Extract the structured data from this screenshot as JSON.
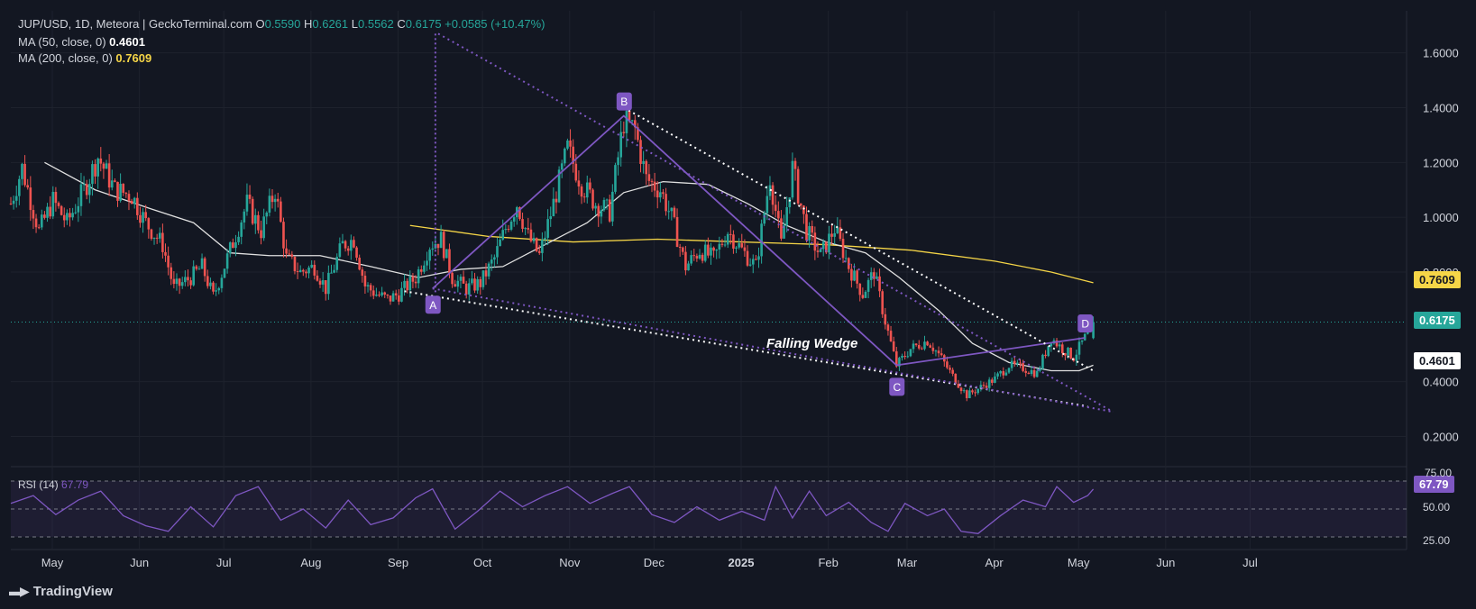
{
  "header": {
    "title": "JUP/USD, 1D, Meteora | GeckoTerminal.com",
    "open_label": "O",
    "open": "0.5590",
    "high_label": "H",
    "high": "0.6261",
    "low_label": "L",
    "low": "0.5562",
    "close_label": "C",
    "close": "0.6175",
    "change": "+0.0585 (+10.47%)",
    "ma50_label": "MA (50, close, 0)",
    "ma50_value": "0.4601",
    "ma200_label": "MA (200, close, 0)",
    "ma200_value": "0.7609"
  },
  "colors": {
    "background": "#131722",
    "bull": "#26a69a",
    "bear": "#ef5350",
    "ma50": "#e0e0e0",
    "ma200": "#f5d547",
    "pattern": "#7e57c2",
    "rsi": "#7e57c2"
  },
  "price_tags": {
    "ma200": "0.7609",
    "last": "0.6175",
    "ma50": "0.4601"
  },
  "rsi": {
    "label": "RSI (14)",
    "value": "67.79",
    "levels": [
      "75.00",
      "50.00",
      "25.00"
    ]
  },
  "annotations": {
    "pattern_name": "Falling Wedge",
    "points": [
      "A",
      "B",
      "C",
      "D"
    ]
  },
  "footer": {
    "brand": "TradingView"
  },
  "chart_data": {
    "type": "candlestick",
    "symbol": "JUP/USD",
    "interval": "1D",
    "y_ticks": [
      "1.6000",
      "1.4000",
      "1.2000",
      "1.0000",
      "0.8000",
      "0.4000",
      "0.2000"
    ],
    "ylim": [
      0.14,
      1.7
    ],
    "x_ticks": [
      "May",
      "Jun",
      "Jul",
      "Aug",
      "Sep",
      "Oct",
      "Nov",
      "Dec",
      "2025",
      "Feb",
      "Mar",
      "Apr",
      "May",
      "Jun",
      "Jul"
    ],
    "close_path": [
      {
        "day": 0,
        "close": 1.05
      },
      {
        "day": 4,
        "close": 1.18
      },
      {
        "day": 10,
        "close": 0.95
      },
      {
        "day": 15,
        "close": 1.06
      },
      {
        "day": 20,
        "close": 0.98
      },
      {
        "day": 26,
        "close": 1.1
      },
      {
        "day": 31,
        "close": 1.22
      },
      {
        "day": 37,
        "close": 1.1
      },
      {
        "day": 43,
        "close": 1.08
      },
      {
        "day": 48,
        "close": 0.98
      },
      {
        "day": 54,
        "close": 0.9
      },
      {
        "day": 58,
        "close": 0.74
      },
      {
        "day": 64,
        "close": 0.78
      },
      {
        "day": 68,
        "close": 0.82
      },
      {
        "day": 72,
        "close": 0.71
      },
      {
        "day": 78,
        "close": 0.88
      },
      {
        "day": 84,
        "close": 1.05
      },
      {
        "day": 89,
        "close": 0.95
      },
      {
        "day": 94,
        "close": 1.1
      },
      {
        "day": 98,
        "close": 0.85
      },
      {
        "day": 103,
        "close": 0.8
      },
      {
        "day": 108,
        "close": 0.82
      },
      {
        "day": 112,
        "close": 0.74
      },
      {
        "day": 118,
        "close": 0.9
      },
      {
        "day": 122,
        "close": 0.92
      },
      {
        "day": 126,
        "close": 0.75
      },
      {
        "day": 130,
        "close": 0.72
      },
      {
        "day": 134,
        "close": 0.7
      },
      {
        "day": 138,
        "close": 0.72
      },
      {
        "day": 144,
        "close": 0.78
      },
      {
        "day": 149,
        "close": 0.9
      },
      {
        "day": 153,
        "close": 0.92
      },
      {
        "day": 157,
        "close": 0.78
      },
      {
        "day": 162,
        "close": 0.74
      },
      {
        "day": 167,
        "close": 0.76
      },
      {
        "day": 172,
        "close": 0.85
      },
      {
        "day": 176,
        "close": 0.96
      },
      {
        "day": 180,
        "close": 1.05
      },
      {
        "day": 184,
        "close": 0.93
      },
      {
        "day": 188,
        "close": 0.86
      },
      {
        "day": 193,
        "close": 1.05
      },
      {
        "day": 198,
        "close": 1.25
      },
      {
        "day": 203,
        "close": 1.12
      },
      {
        "day": 208,
        "close": 1.05
      },
      {
        "day": 213,
        "close": 1.02
      },
      {
        "day": 218,
        "close": 1.35
      },
      {
        "day": 222,
        "close": 1.32
      },
      {
        "day": 226,
        "close": 1.14
      },
      {
        "day": 231,
        "close": 1.1
      },
      {
        "day": 235,
        "close": 1.0
      },
      {
        "day": 240,
        "close": 0.82
      },
      {
        "day": 245,
        "close": 0.88
      },
      {
        "day": 250,
        "close": 0.85
      },
      {
        "day": 255,
        "close": 0.95
      },
      {
        "day": 260,
        "close": 0.88
      },
      {
        "day": 265,
        "close": 0.82
      },
      {
        "day": 270,
        "close": 1.15
      },
      {
        "day": 274,
        "close": 0.9
      },
      {
        "day": 278,
        "close": 1.18
      },
      {
        "day": 283,
        "close": 0.95
      },
      {
        "day": 288,
        "close": 0.86
      },
      {
        "day": 293,
        "close": 0.96
      },
      {
        "day": 298,
        "close": 0.82
      },
      {
        "day": 303,
        "close": 0.72
      },
      {
        "day": 307,
        "close": 0.8
      },
      {
        "day": 311,
        "close": 0.62
      },
      {
        "day": 315,
        "close": 0.46
      },
      {
        "day": 320,
        "close": 0.52
      },
      {
        "day": 326,
        "close": 0.55
      },
      {
        "day": 330,
        "close": 0.5
      },
      {
        "day": 335,
        "close": 0.42
      },
      {
        "day": 340,
        "close": 0.35
      },
      {
        "day": 345,
        "close": 0.38
      },
      {
        "day": 350,
        "close": 0.41
      },
      {
        "day": 355,
        "close": 0.46
      },
      {
        "day": 360,
        "close": 0.45
      },
      {
        "day": 365,
        "close": 0.43
      },
      {
        "day": 370,
        "close": 0.56
      },
      {
        "day": 374,
        "close": 0.52
      },
      {
        "day": 378,
        "close": 0.49
      },
      {
        "day": 382,
        "close": 0.56
      },
      {
        "day": 385,
        "close": 0.6175
      }
    ],
    "ma50_path": [
      {
        "day": 12,
        "value": 1.2
      },
      {
        "day": 30,
        "value": 1.1
      },
      {
        "day": 50,
        "value": 1.03
      },
      {
        "day": 65,
        "value": 0.98
      },
      {
        "day": 78,
        "value": 0.87
      },
      {
        "day": 92,
        "value": 0.86
      },
      {
        "day": 110,
        "value": 0.86
      },
      {
        "day": 128,
        "value": 0.82
      },
      {
        "day": 145,
        "value": 0.78
      },
      {
        "day": 160,
        "value": 0.81
      },
      {
        "day": 175,
        "value": 0.82
      },
      {
        "day": 190,
        "value": 0.9
      },
      {
        "day": 205,
        "value": 0.98
      },
      {
        "day": 218,
        "value": 1.09
      },
      {
        "day": 232,
        "value": 1.13
      },
      {
        "day": 248,
        "value": 1.12
      },
      {
        "day": 262,
        "value": 1.05
      },
      {
        "day": 276,
        "value": 0.97
      },
      {
        "day": 290,
        "value": 0.91
      },
      {
        "day": 304,
        "value": 0.87
      },
      {
        "day": 316,
        "value": 0.78
      },
      {
        "day": 330,
        "value": 0.66
      },
      {
        "day": 342,
        "value": 0.54
      },
      {
        "day": 355,
        "value": 0.47
      },
      {
        "day": 370,
        "value": 0.44
      },
      {
        "day": 380,
        "value": 0.44
      },
      {
        "day": 385,
        "value": 0.46
      }
    ],
    "ma200_path": [
      {
        "day": 142,
        "value": 0.97
      },
      {
        "day": 170,
        "value": 0.93
      },
      {
        "day": 200,
        "value": 0.91
      },
      {
        "day": 230,
        "value": 0.92
      },
      {
        "day": 260,
        "value": 0.91
      },
      {
        "day": 290,
        "value": 0.9
      },
      {
        "day": 320,
        "value": 0.88
      },
      {
        "day": 350,
        "value": 0.84
      },
      {
        "day": 370,
        "value": 0.8
      },
      {
        "day": 385,
        "value": 0.7609
      }
    ],
    "rsi_path": [
      {
        "day": 0,
        "value": 55
      },
      {
        "day": 8,
        "value": 62
      },
      {
        "day": 16,
        "value": 45
      },
      {
        "day": 24,
        "value": 58
      },
      {
        "day": 32,
        "value": 66
      },
      {
        "day": 40,
        "value": 44
      },
      {
        "day": 48,
        "value": 35
      },
      {
        "day": 56,
        "value": 30
      },
      {
        "day": 64,
        "value": 52
      },
      {
        "day": 72,
        "value": 34
      },
      {
        "day": 80,
        "value": 62
      },
      {
        "day": 88,
        "value": 70
      },
      {
        "day": 96,
        "value": 40
      },
      {
        "day": 104,
        "value": 50
      },
      {
        "day": 112,
        "value": 33
      },
      {
        "day": 120,
        "value": 58
      },
      {
        "day": 128,
        "value": 36
      },
      {
        "day": 136,
        "value": 42
      },
      {
        "day": 144,
        "value": 60
      },
      {
        "day": 150,
        "value": 68
      },
      {
        "day": 158,
        "value": 32
      },
      {
        "day": 166,
        "value": 48
      },
      {
        "day": 174,
        "value": 66
      },
      {
        "day": 182,
        "value": 52
      },
      {
        "day": 190,
        "value": 62
      },
      {
        "day": 198,
        "value": 70
      },
      {
        "day": 206,
        "value": 55
      },
      {
        "day": 214,
        "value": 64
      },
      {
        "day": 220,
        "value": 70
      },
      {
        "day": 228,
        "value": 45
      },
      {
        "day": 236,
        "value": 38
      },
      {
        "day": 244,
        "value": 52
      },
      {
        "day": 252,
        "value": 40
      },
      {
        "day": 260,
        "value": 48
      },
      {
        "day": 268,
        "value": 40
      },
      {
        "day": 272,
        "value": 70
      },
      {
        "day": 278,
        "value": 42
      },
      {
        "day": 284,
        "value": 66
      },
      {
        "day": 290,
        "value": 44
      },
      {
        "day": 298,
        "value": 56
      },
      {
        "day": 306,
        "value": 38
      },
      {
        "day": 312,
        "value": 30
      },
      {
        "day": 318,
        "value": 55
      },
      {
        "day": 326,
        "value": 44
      },
      {
        "day": 332,
        "value": 50
      },
      {
        "day": 338,
        "value": 30
      },
      {
        "day": 344,
        "value": 28
      },
      {
        "day": 352,
        "value": 44
      },
      {
        "day": 360,
        "value": 58
      },
      {
        "day": 368,
        "value": 52
      },
      {
        "day": 372,
        "value": 70
      },
      {
        "day": 378,
        "value": 56
      },
      {
        "day": 383,
        "value": 62
      },
      {
        "day": 385,
        "value": 67.79
      }
    ],
    "pattern": {
      "name": "Falling Wedge",
      "A": {
        "day": 150,
        "price": 0.74
      },
      "B": {
        "day": 218,
        "price": 1.37
      },
      "C": {
        "day": 315,
        "price": 0.46
      },
      "D": {
        "day": 382,
        "price": 0.56
      }
    }
  }
}
